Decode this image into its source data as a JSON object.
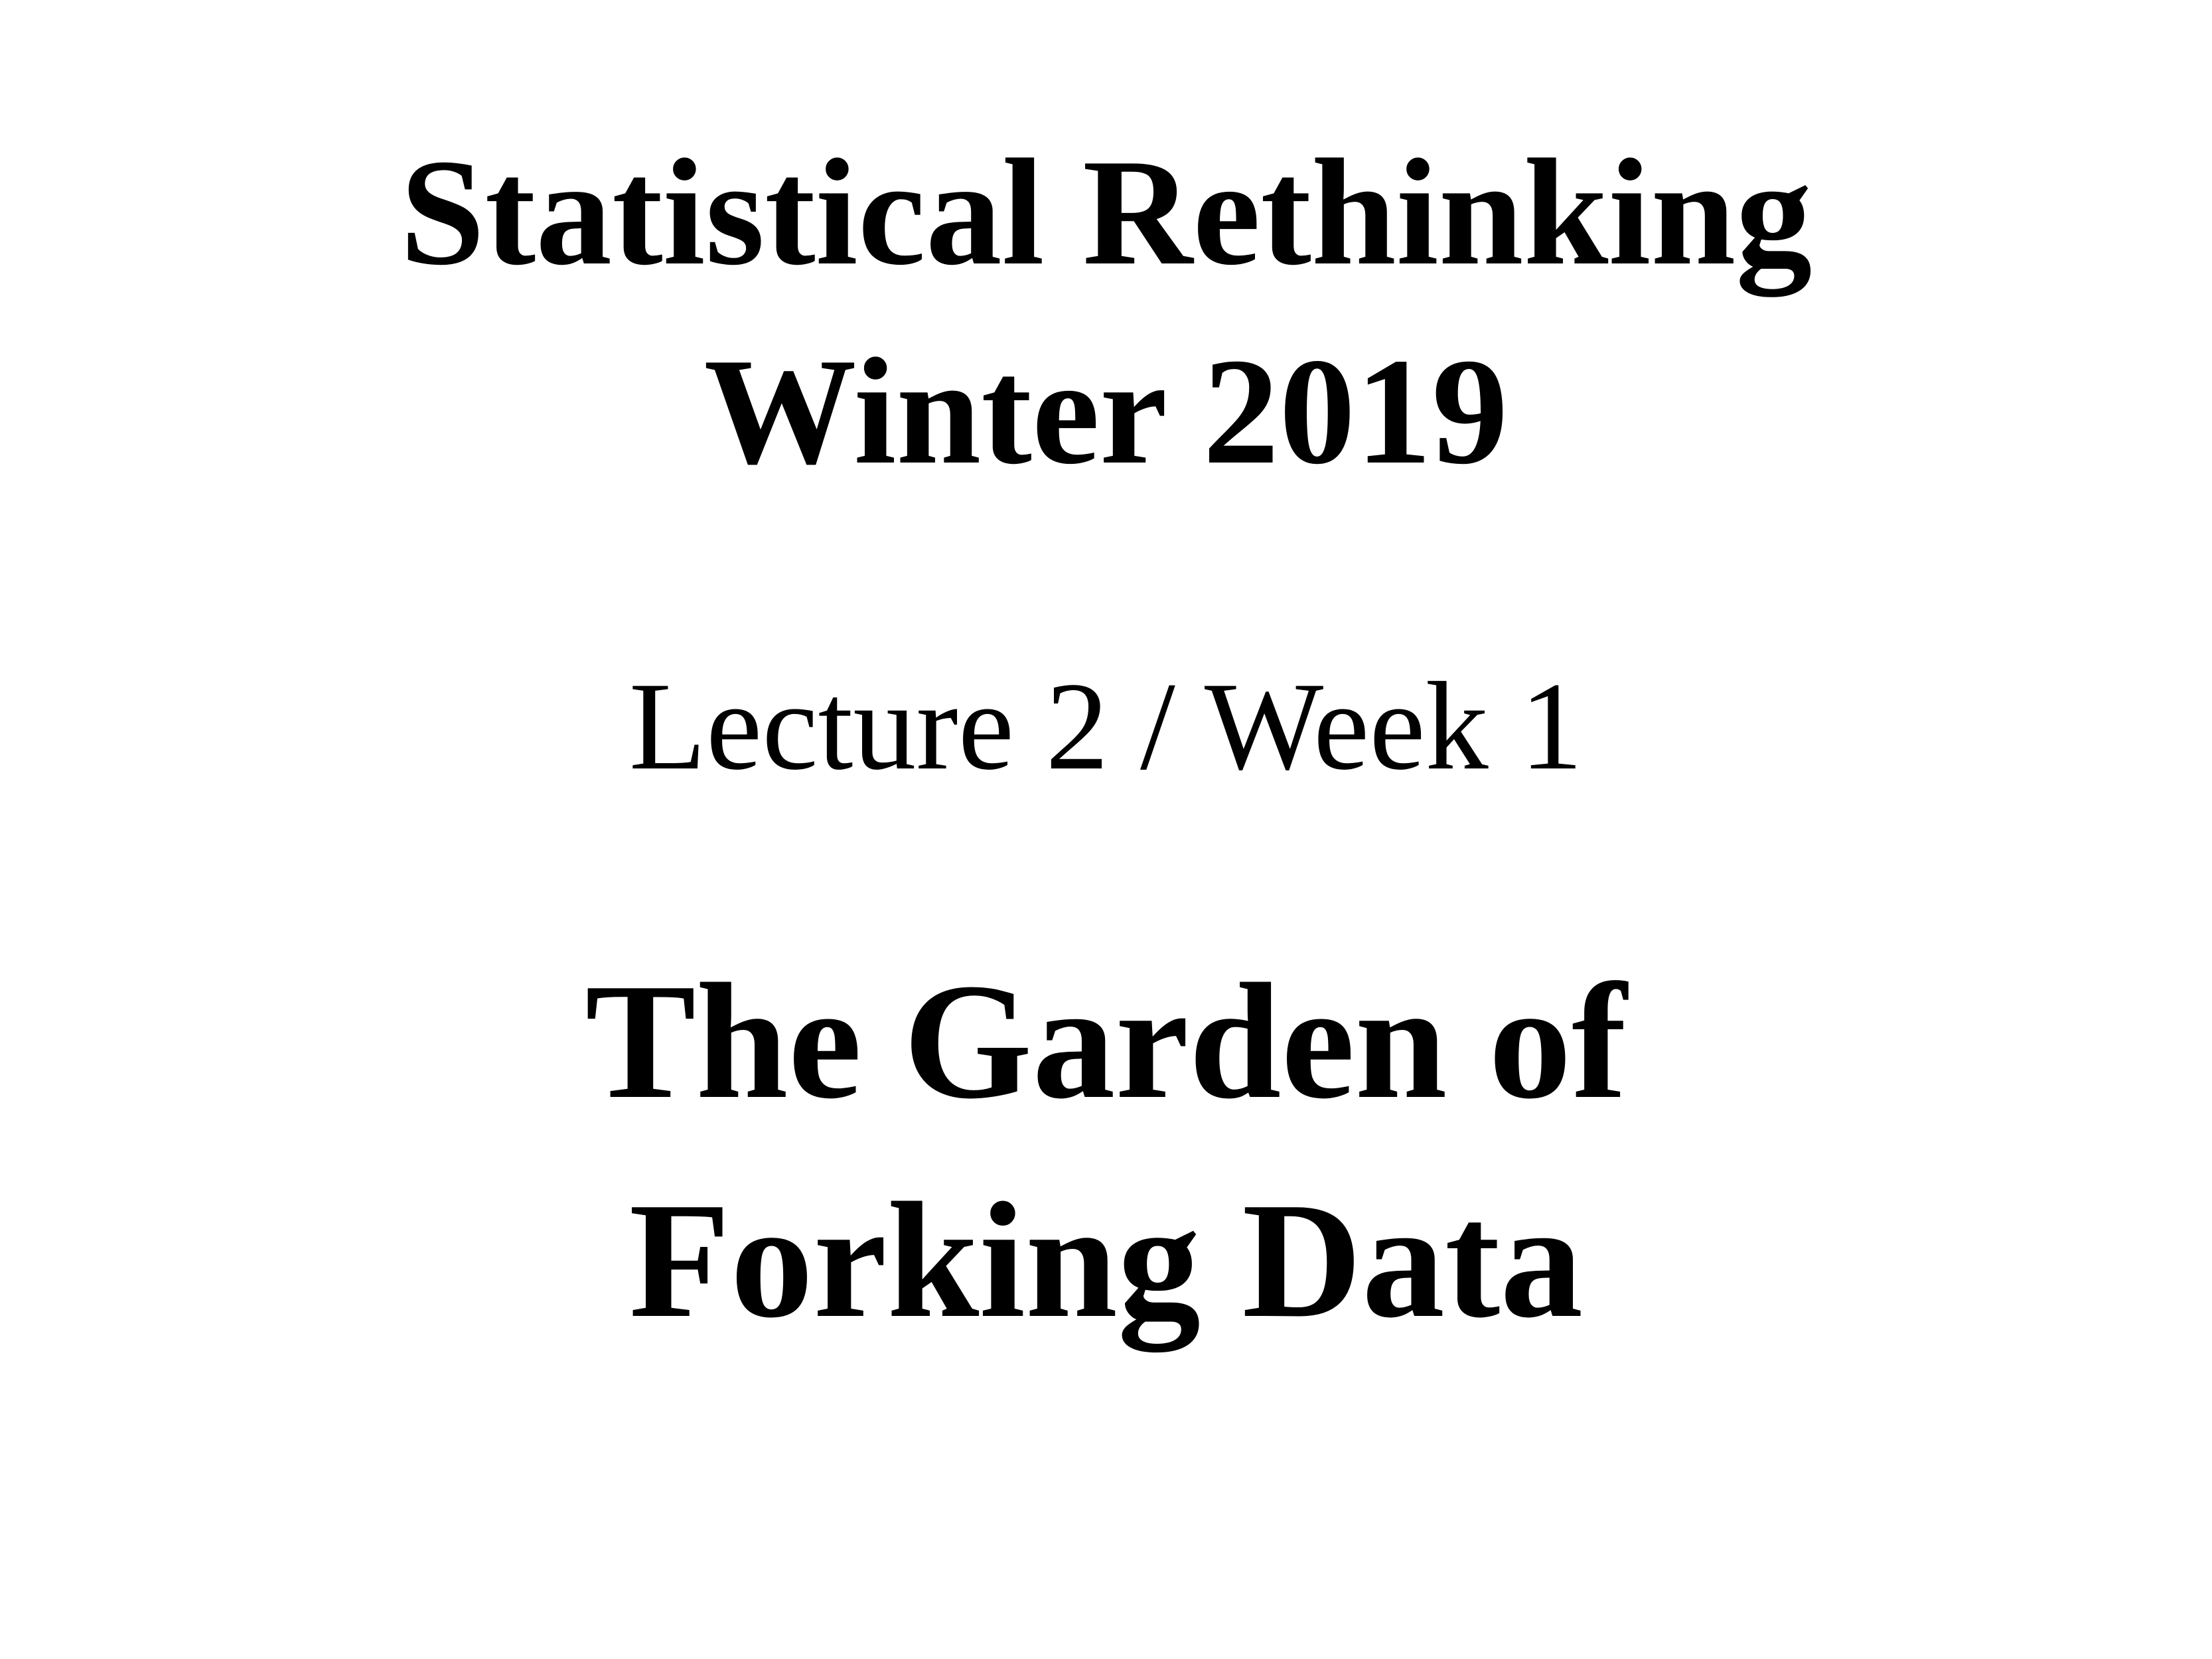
{
  "slide": {
    "course_title": "Statistical Rethinking",
    "term": "Winter 2019",
    "lecture": "Lecture 2 / Week 1",
    "talk_title_line1": "The Garden of",
    "talk_title_line2": "Forking Data"
  },
  "colors": {
    "background": "#ffffff",
    "text": "#000000"
  }
}
